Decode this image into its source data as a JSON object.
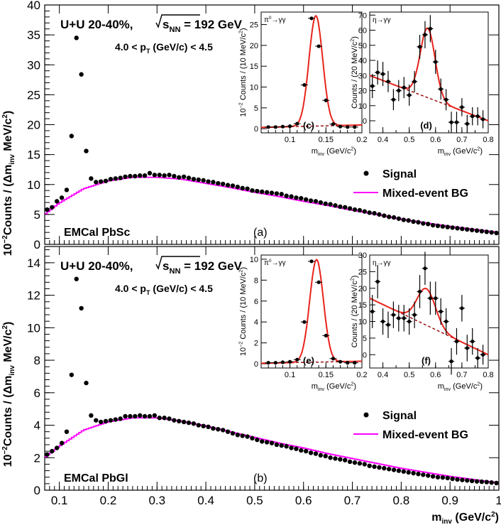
{
  "figure": {
    "xlabel_main": "m",
    "xlabel_sub": "inv",
    "xlabel_unit": " (GeV/c",
    "xlabel_sup": "2",
    "xlabel_close": ")",
    "ylabel_pre": "10",
    "ylabel_exp": "−2",
    "ylabel_mid": "Counts / (Δm",
    "ylabel_sub": "inv",
    "ylabel_unit": " MeV/c",
    "ylabel_sup": "2",
    "ylabel_close": ")"
  },
  "common": {
    "system_text": "U+U 20-40%,",
    "sqrt_text": "s",
    "sqrt_sub": "NN",
    "energy_text": " = 192 GeV",
    "pt_pre": "4.0 < p",
    "pt_sub": "T",
    "pt_post": " (GeV/c) < 4.5",
    "legend_signal": "Signal",
    "legend_bg": "Mixed-event BG",
    "inset_xlabel_main": "m",
    "inset_xlabel_sub": "inv",
    "inset_xlabel_unit": " (GeV/c",
    "inset_xlabel_sup": "2",
    "inset_xlabel_close": ")",
    "pi0_ylabel_pre": "10",
    "pi0_ylabel_exp": "−2",
    "pi0_ylabel_rest": " Counts / (10 MeV/c",
    "pi0_ylabel_sup": "2",
    "pi0_ylabel_close": ")",
    "eta_ylabel": "Counts / (20 MeV/c",
    "eta_ylabel_sup": "2",
    "eta_ylabel_close": ")",
    "pi0_tag_pre": "π",
    "pi0_tag_sup": "0",
    "pi0_tag_post": "→γγ",
    "eta_tag": "η→γγ"
  },
  "colors": {
    "signal": "#000000",
    "mixed_bg": "#ff00ff",
    "fit": "#e8231c",
    "bg_fit": "#9b1010"
  },
  "chart_data": [
    {
      "type": "scatter",
      "detector_label": "EMCal PbSc",
      "panel_label": "(a)",
      "xlim": [
        0.07,
        1.0
      ],
      "ylim": [
        0,
        40
      ],
      "x_ticks": [],
      "y_ticks": [
        "0",
        "5",
        "10",
        "15",
        "20",
        "25",
        "30",
        "35",
        "40"
      ],
      "series": [
        {
          "name": "Signal",
          "x": [
            0.075,
            0.085,
            0.095,
            0.105,
            0.115,
            0.125,
            0.135,
            0.145,
            0.155,
            0.165,
            0.175,
            0.185,
            0.195,
            0.205,
            0.215,
            0.225,
            0.235,
            0.245,
            0.255,
            0.265,
            0.275,
            0.285,
            0.295,
            0.305,
            0.315,
            0.325,
            0.335,
            0.345,
            0.355,
            0.365,
            0.375,
            0.385,
            0.395,
            0.405,
            0.415,
            0.425,
            0.435,
            0.445,
            0.455,
            0.465,
            0.475,
            0.485,
            0.495,
            0.505,
            0.515,
            0.525,
            0.535,
            0.545,
            0.555,
            0.565,
            0.575,
            0.585,
            0.595,
            0.605,
            0.615,
            0.625,
            0.635,
            0.645,
            0.655,
            0.665,
            0.675,
            0.685,
            0.695,
            0.705,
            0.715,
            0.725,
            0.735,
            0.745,
            0.755,
            0.765,
            0.775,
            0.785,
            0.795,
            0.805,
            0.815,
            0.825,
            0.835,
            0.845,
            0.855,
            0.865,
            0.875,
            0.885,
            0.895,
            0.905,
            0.915,
            0.925,
            0.935,
            0.945,
            0.955,
            0.965,
            0.975,
            0.985,
            0.995
          ],
          "y": [
            5.8,
            6.2,
            7.2,
            7.8,
            9.1,
            18.1,
            34.5,
            28.4,
            15.6,
            11.0,
            10.4,
            10.5,
            10.6,
            10.9,
            11.0,
            11.1,
            11.3,
            11.4,
            11.4,
            11.5,
            11.5,
            11.9,
            11.6,
            11.6,
            11.5,
            11.6,
            11.4,
            11.2,
            11.3,
            11.1,
            10.9,
            10.8,
            10.7,
            10.5,
            10.4,
            10.2,
            10.1,
            9.9,
            9.8,
            9.6,
            9.4,
            9.3,
            9.0,
            8.9,
            8.8,
            8.7,
            8.6,
            8.5,
            8.4,
            8.1,
            8.0,
            7.8,
            7.7,
            7.5,
            7.3,
            7.2,
            7.0,
            6.8,
            6.7,
            6.5,
            6.3,
            6.2,
            6.0,
            5.8,
            5.7,
            5.5,
            5.3,
            5.2,
            5.0,
            4.8,
            4.6,
            4.5,
            4.3,
            4.1,
            4.0,
            3.8,
            3.7,
            3.5,
            3.4,
            3.2,
            3.1,
            3.0,
            2.9,
            2.8,
            2.7,
            2.6,
            2.5,
            2.4,
            2.3,
            2.2,
            2.1,
            2.0,
            1.9
          ]
        },
        {
          "name": "Mixed-event BG",
          "x": [
            0.07,
            0.1,
            0.15,
            0.2,
            0.25,
            0.3,
            0.35,
            0.4,
            0.45,
            0.5,
            0.55,
            0.6,
            0.65,
            0.7,
            0.75,
            0.8,
            0.85,
            0.9,
            0.95,
            1.0
          ],
          "y": [
            5.0,
            6.9,
            9.3,
            10.6,
            11.2,
            11.2,
            10.9,
            10.2,
            9.5,
            8.7,
            8.0,
            7.2,
            6.5,
            5.7,
            5.0,
            4.2,
            3.6,
            3.0,
            2.5,
            2.0
          ]
        }
      ],
      "inset_pi0": {
        "panel_label": "(c)",
        "xlim": [
          0.06,
          0.2
        ],
        "ylim": [
          -1,
          28
        ],
        "x_ticks": [
          "0.1",
          "0.15",
          "0.2"
        ],
        "y_ticks": [
          "0",
          "5",
          "10",
          "15",
          "20",
          "25"
        ],
        "x": [
          0.07,
          0.08,
          0.09,
          0.1,
          0.11,
          0.12,
          0.13,
          0.14,
          0.15,
          0.16,
          0.17,
          0.18,
          0.19
        ],
        "y": [
          0.4,
          0.4,
          0.5,
          0.6,
          1.2,
          10.5,
          26.5,
          19.8,
          6.8,
          1.1,
          0.5,
          0.4,
          0.4
        ],
        "fit_mean": 0.136,
        "fit_sigma": 0.0095,
        "fit_amp": 26.5,
        "fit_bg": [
          0.3,
          0.9
        ]
      },
      "inset_eta": {
        "panel_label": "(d)",
        "xlim": [
          0.35,
          0.8
        ],
        "ylim": [
          -8,
          72
        ],
        "x_ticks": [
          "0.4",
          "0.5",
          "0.6",
          "0.7",
          "0.8"
        ],
        "y_ticks": [
          "0",
          "10",
          "20",
          "30",
          "40",
          "50",
          "60",
          "70"
        ],
        "x": [
          0.36,
          0.38,
          0.4,
          0.42,
          0.44,
          0.46,
          0.48,
          0.5,
          0.52,
          0.54,
          0.56,
          0.58,
          0.6,
          0.62,
          0.64,
          0.66,
          0.68,
          0.7,
          0.72,
          0.74,
          0.76,
          0.78
        ],
        "y": [
          23,
          32,
          31,
          26,
          14,
          20,
          22,
          17,
          26,
          49,
          57,
          61,
          39,
          21,
          14,
          -1,
          -1,
          9,
          -2,
          3,
          3,
          1
        ],
        "err": [
          8,
          8,
          8,
          7,
          7,
          7,
          7,
          7,
          7,
          8,
          9,
          9,
          8,
          7,
          7,
          7,
          7,
          6,
          6,
          6,
          6,
          6
        ],
        "fit_mean": 0.57,
        "fit_sigma": 0.028,
        "fit_amp": 46,
        "fit_bg": [
          30,
          0
        ]
      }
    },
    {
      "type": "scatter",
      "detector_label": "EMCal PbGl",
      "panel_label": "(b)",
      "xlim": [
        0.07,
        1.0
      ],
      "ylim": [
        0,
        15
      ],
      "x_ticks": [
        "0.1",
        "0.2",
        "0.3",
        "0.4",
        "0.5",
        "0.6",
        "0.7",
        "0.8",
        "0.9",
        "1"
      ],
      "y_ticks": [
        "0",
        "2",
        "4",
        "6",
        "8",
        "10",
        "12",
        "14"
      ],
      "series": [
        {
          "name": "Signal",
          "x": [
            0.075,
            0.085,
            0.095,
            0.105,
            0.115,
            0.125,
            0.135,
            0.145,
            0.155,
            0.165,
            0.175,
            0.185,
            0.195,
            0.205,
            0.215,
            0.225,
            0.235,
            0.245,
            0.255,
            0.265,
            0.275,
            0.285,
            0.295,
            0.305,
            0.315,
            0.325,
            0.335,
            0.345,
            0.355,
            0.365,
            0.375,
            0.385,
            0.395,
            0.405,
            0.415,
            0.425,
            0.435,
            0.445,
            0.455,
            0.465,
            0.475,
            0.485,
            0.495,
            0.505,
            0.515,
            0.525,
            0.535,
            0.545,
            0.555,
            0.565,
            0.575,
            0.585,
            0.595,
            0.605,
            0.615,
            0.625,
            0.635,
            0.645,
            0.655,
            0.665,
            0.675,
            0.685,
            0.695,
            0.705,
            0.715,
            0.725,
            0.735,
            0.745,
            0.755,
            0.765,
            0.775,
            0.785,
            0.795,
            0.805,
            0.815,
            0.825,
            0.835,
            0.845,
            0.855,
            0.865,
            0.875,
            0.885,
            0.895,
            0.905,
            0.915,
            0.925,
            0.935,
            0.945,
            0.955,
            0.965,
            0.975,
            0.985,
            0.995
          ],
          "y": [
            2.2,
            2.4,
            2.6,
            2.9,
            3.6,
            7.1,
            13.0,
            11.2,
            6.6,
            4.6,
            4.3,
            4.2,
            4.25,
            4.3,
            4.35,
            4.4,
            4.55,
            4.55,
            4.55,
            4.6,
            4.55,
            4.55,
            4.6,
            4.45,
            4.45,
            4.4,
            4.3,
            4.25,
            4.2,
            4.15,
            4.1,
            4.0,
            3.95,
            3.9,
            3.8,
            3.75,
            3.7,
            3.6,
            3.5,
            3.4,
            3.35,
            3.3,
            3.2,
            3.1,
            3.0,
            2.95,
            2.9,
            2.8,
            2.75,
            2.7,
            2.6,
            2.55,
            2.45,
            2.4,
            2.3,
            2.25,
            2.15,
            2.1,
            2.0,
            1.95,
            1.9,
            1.85,
            1.75,
            1.7,
            1.65,
            1.6,
            1.5,
            1.45,
            1.4,
            1.35,
            1.3,
            1.25,
            1.2,
            1.15,
            1.1,
            1.05,
            1.0,
            0.95,
            0.9,
            0.85,
            0.8,
            0.78,
            0.75,
            0.7,
            0.66,
            0.63,
            0.6,
            0.57,
            0.54,
            0.52,
            0.5,
            0.47,
            0.44
          ]
        },
        {
          "name": "Mixed-event BG",
          "x": [
            0.07,
            0.1,
            0.15,
            0.2,
            0.25,
            0.3,
            0.35,
            0.4,
            0.45,
            0.5,
            0.55,
            0.6,
            0.65,
            0.7,
            0.75,
            0.8,
            0.85,
            0.9,
            0.95,
            1.0
          ],
          "y": [
            2.0,
            2.7,
            3.7,
            4.2,
            4.45,
            4.45,
            4.25,
            3.95,
            3.6,
            3.25,
            2.9,
            2.6,
            2.25,
            1.95,
            1.65,
            1.35,
            1.1,
            0.85,
            0.65,
            0.45
          ]
        }
      ],
      "inset_pi0": {
        "panel_label": "(e)",
        "xlim": [
          0.06,
          0.2
        ],
        "ylim": [
          -0.4,
          10.4
        ],
        "x_ticks": [
          "0.1",
          "0.15",
          "0.2"
        ],
        "y_ticks": [
          "0",
          "2",
          "4",
          "6",
          "8",
          "10"
        ],
        "x": [
          0.07,
          0.08,
          0.09,
          0.1,
          0.11,
          0.12,
          0.13,
          0.14,
          0.15,
          0.16,
          0.17,
          0.18,
          0.19
        ],
        "y": [
          0.1,
          0.1,
          0.15,
          0.2,
          0.4,
          4.0,
          9.8,
          7.8,
          2.7,
          0.5,
          0.2,
          0.1,
          0.1
        ],
        "fit_mean": 0.137,
        "fit_sigma": 0.0095,
        "fit_amp": 9.8,
        "fit_bg": [
          0.05,
          0.25
        ]
      },
      "inset_eta": {
        "panel_label": "(f)",
        "xlim": [
          0.35,
          0.8
        ],
        "ylim": [
          -4,
          30
        ],
        "x_ticks": [
          "0.4",
          "0.5",
          "0.6",
          "0.7",
          "0.8"
        ],
        "y_ticks": [
          "0",
          "5",
          "10",
          "15",
          "20",
          "25",
          "30"
        ],
        "x": [
          0.36,
          0.38,
          0.4,
          0.42,
          0.44,
          0.46,
          0.48,
          0.5,
          0.52,
          0.54,
          0.56,
          0.58,
          0.6,
          0.62,
          0.64,
          0.66,
          0.68,
          0.7,
          0.72,
          0.74,
          0.76,
          0.78
        ],
        "y": [
          13,
          22,
          10,
          9,
          12,
          11,
          11,
          10,
          12,
          19,
          26,
          17,
          17,
          13,
          10,
          -2,
          4,
          14,
          2,
          4,
          -1,
          0
        ],
        "err": [
          5,
          5,
          4,
          4,
          4,
          4,
          4,
          4,
          4,
          5,
          5,
          5,
          5,
          4,
          4,
          4,
          4,
          4,
          4,
          4,
          3,
          3
        ],
        "fit_mean": 0.565,
        "fit_sigma": 0.035,
        "fit_amp": 11,
        "fit_bg": [
          17,
          0
        ]
      }
    }
  ]
}
